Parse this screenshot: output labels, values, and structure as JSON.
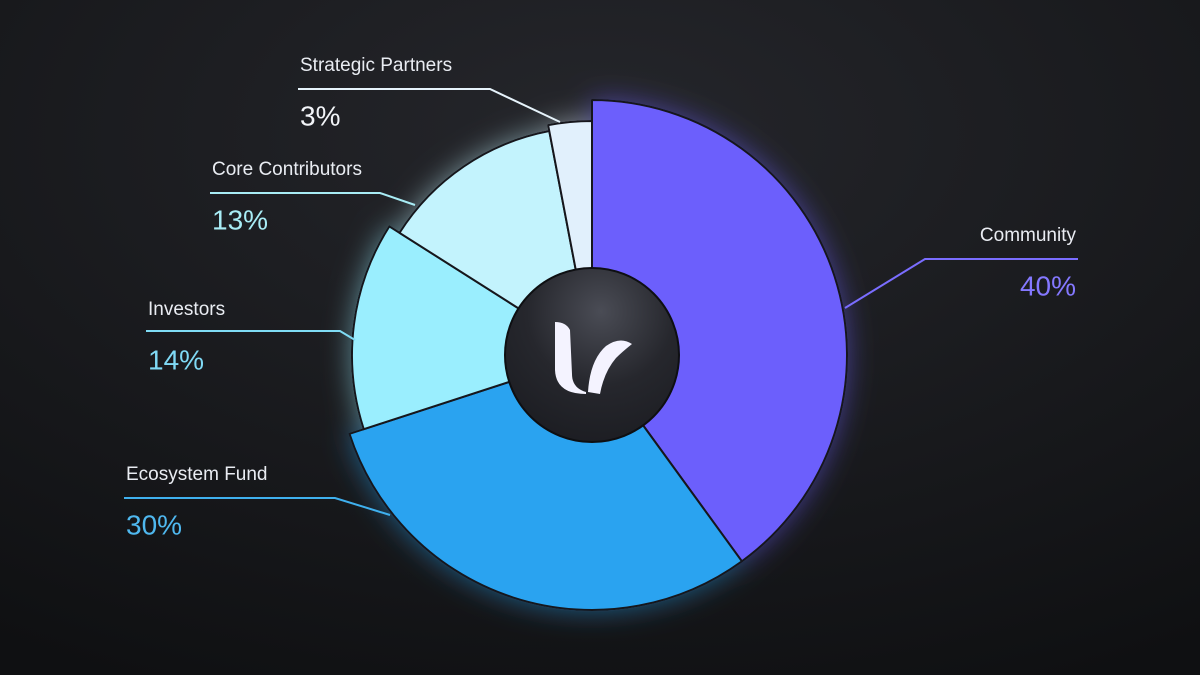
{
  "chart_data": {
    "type": "pie",
    "categories": [
      "Community",
      "Ecosystem Fund",
      "Investors",
      "Core Contributors",
      "Strategic Partners"
    ],
    "values": [
      40,
      30,
      14,
      13,
      3
    ],
    "value_labels": [
      "40%",
      "30%",
      "14%",
      "13%",
      "3%"
    ],
    "colors": [
      "#6c5ffc",
      "#29a3f0",
      "#9aeefe",
      "#c3f3fd",
      "#e1f0fc"
    ]
  }
}
